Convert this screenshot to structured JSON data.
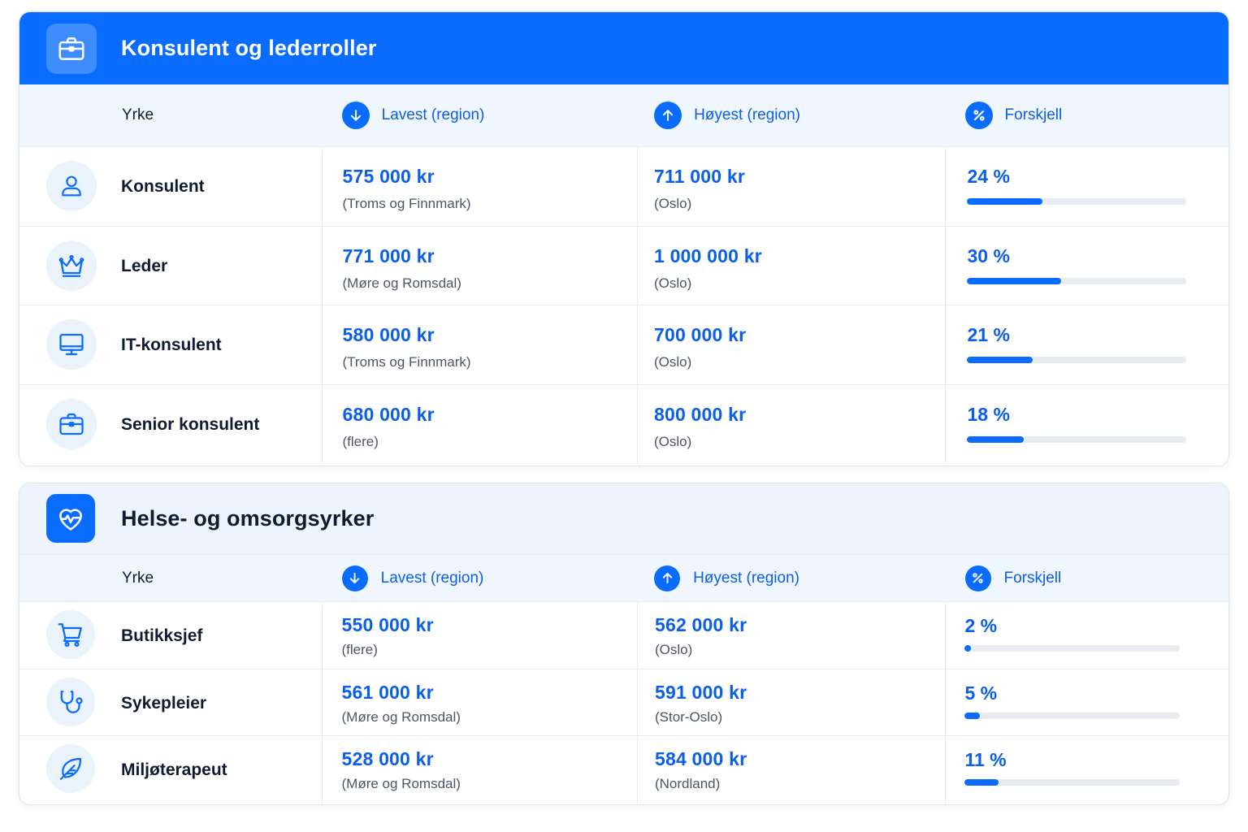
{
  "colors": {
    "accent": "#0a6cff",
    "accent_text": "#0a5fe6",
    "header_light": "#edf4fd"
  },
  "sections": [
    {
      "title": "Konsulent og lederroller",
      "icon": "briefcase-icon",
      "columns": {
        "job": "Yrke",
        "low": "Lavest (region)",
        "high": "Høyest (region)",
        "diff": "Forskjell"
      },
      "rows": [
        {
          "icon": "user-icon",
          "job": "Konsulent",
          "low_amount": "575 000 kr",
          "low_region": "(Troms og Finnmark)",
          "high_amount": "711 000 kr",
          "high_region": "(Oslo)",
          "diff": "24 %",
          "diff_value": 24
        },
        {
          "icon": "crown-icon",
          "job": "Leder",
          "low_amount": "771 000 kr",
          "low_region": "(Møre og Romsdal)",
          "high_amount": "1 000 000 kr",
          "high_region": "(Oslo)",
          "diff": "30 %",
          "diff_value": 30
        },
        {
          "icon": "monitor-icon",
          "job": "IT-konsulent",
          "low_amount": "580 000 kr",
          "low_region": "(Troms og Finnmark)",
          "high_amount": "700 000 kr",
          "high_region": "(Oslo)",
          "diff": "21 %",
          "diff_value": 21
        },
        {
          "icon": "briefcase-icon",
          "job": "Senior konsulent",
          "low_amount": "680 000 kr",
          "low_region": "(flere)",
          "high_amount": "800 000 kr",
          "high_region": "(Oslo)",
          "diff": "18 %",
          "diff_value": 18
        }
      ]
    },
    {
      "title": "Helse- og omsorgsyrker",
      "icon": "heart-pulse-icon",
      "columns": {
        "job": "Yrke",
        "low": "Lavest (region)",
        "high": "Høyest (region)",
        "diff": "Forskjell"
      },
      "rows": [
        {
          "icon": "shopping-cart-icon",
          "job": "Butikksjef",
          "low_amount": "550 000 kr",
          "low_region": "(flere)",
          "high_amount": "562 000 kr",
          "high_region": "(Oslo)",
          "diff": "2 %",
          "diff_value": 2
        },
        {
          "icon": "stethoscope-icon",
          "job": "Sykepleier",
          "low_amount": "561 000 kr",
          "low_region": "(Møre og Romsdal)",
          "high_amount": "591 000 kr",
          "high_region": "(Stor-Oslo)",
          "diff": "5 %",
          "diff_value": 5
        },
        {
          "icon": "leaf-icon",
          "job": "Miljøterapeut",
          "low_amount": "528 000 kr",
          "low_region": "(Møre og Romsdal)",
          "high_amount": "584 000 kr",
          "high_region": "(Nordland)",
          "diff": "11 %",
          "diff_value": 11
        }
      ]
    }
  ]
}
